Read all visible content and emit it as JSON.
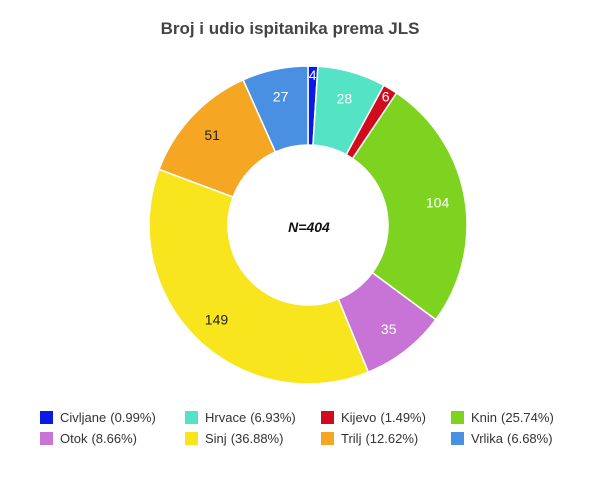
{
  "chart_data": {
    "type": "pie",
    "variant": "donut",
    "title": "Broj i udio ispitanika prema JLS",
    "center_label": "N=404",
    "legend_position": "bottom",
    "series": [
      {
        "name": "Civljane",
        "value": 4,
        "percent_label": "(0.99%)",
        "color": "#0a18e8",
        "label_color": "#ffffff"
      },
      {
        "name": "Hrvace",
        "value": 28,
        "percent_label": "(6.93%)",
        "color": "#55e3c6",
        "label_color": "#ffffff"
      },
      {
        "name": "Kijevo",
        "value": 6,
        "percent_label": "(1.49%)",
        "color": "#d10a1e",
        "label_color": "#ffffff"
      },
      {
        "name": "Knin",
        "value": 104,
        "percent_label": "(25.74%)",
        "color": "#7ed321",
        "label_color": "#ffffff"
      },
      {
        "name": "Otok",
        "value": 35,
        "percent_label": "(8.66%)",
        "color": "#c874d6",
        "label_color": "#ffffff"
      },
      {
        "name": "Sinj",
        "value": 149,
        "percent_label": "(36.88%)",
        "color": "#f8e51e",
        "label_color": "#222222"
      },
      {
        "name": "Trilj",
        "value": 51,
        "percent_label": "(12.62%)",
        "color": "#f5a623",
        "label_color": "#222222"
      },
      {
        "name": "Vrlika",
        "value": 27,
        "percent_label": "(6.68%)",
        "color": "#4a90e2",
        "label_color": "#ffffff"
      }
    ]
  }
}
